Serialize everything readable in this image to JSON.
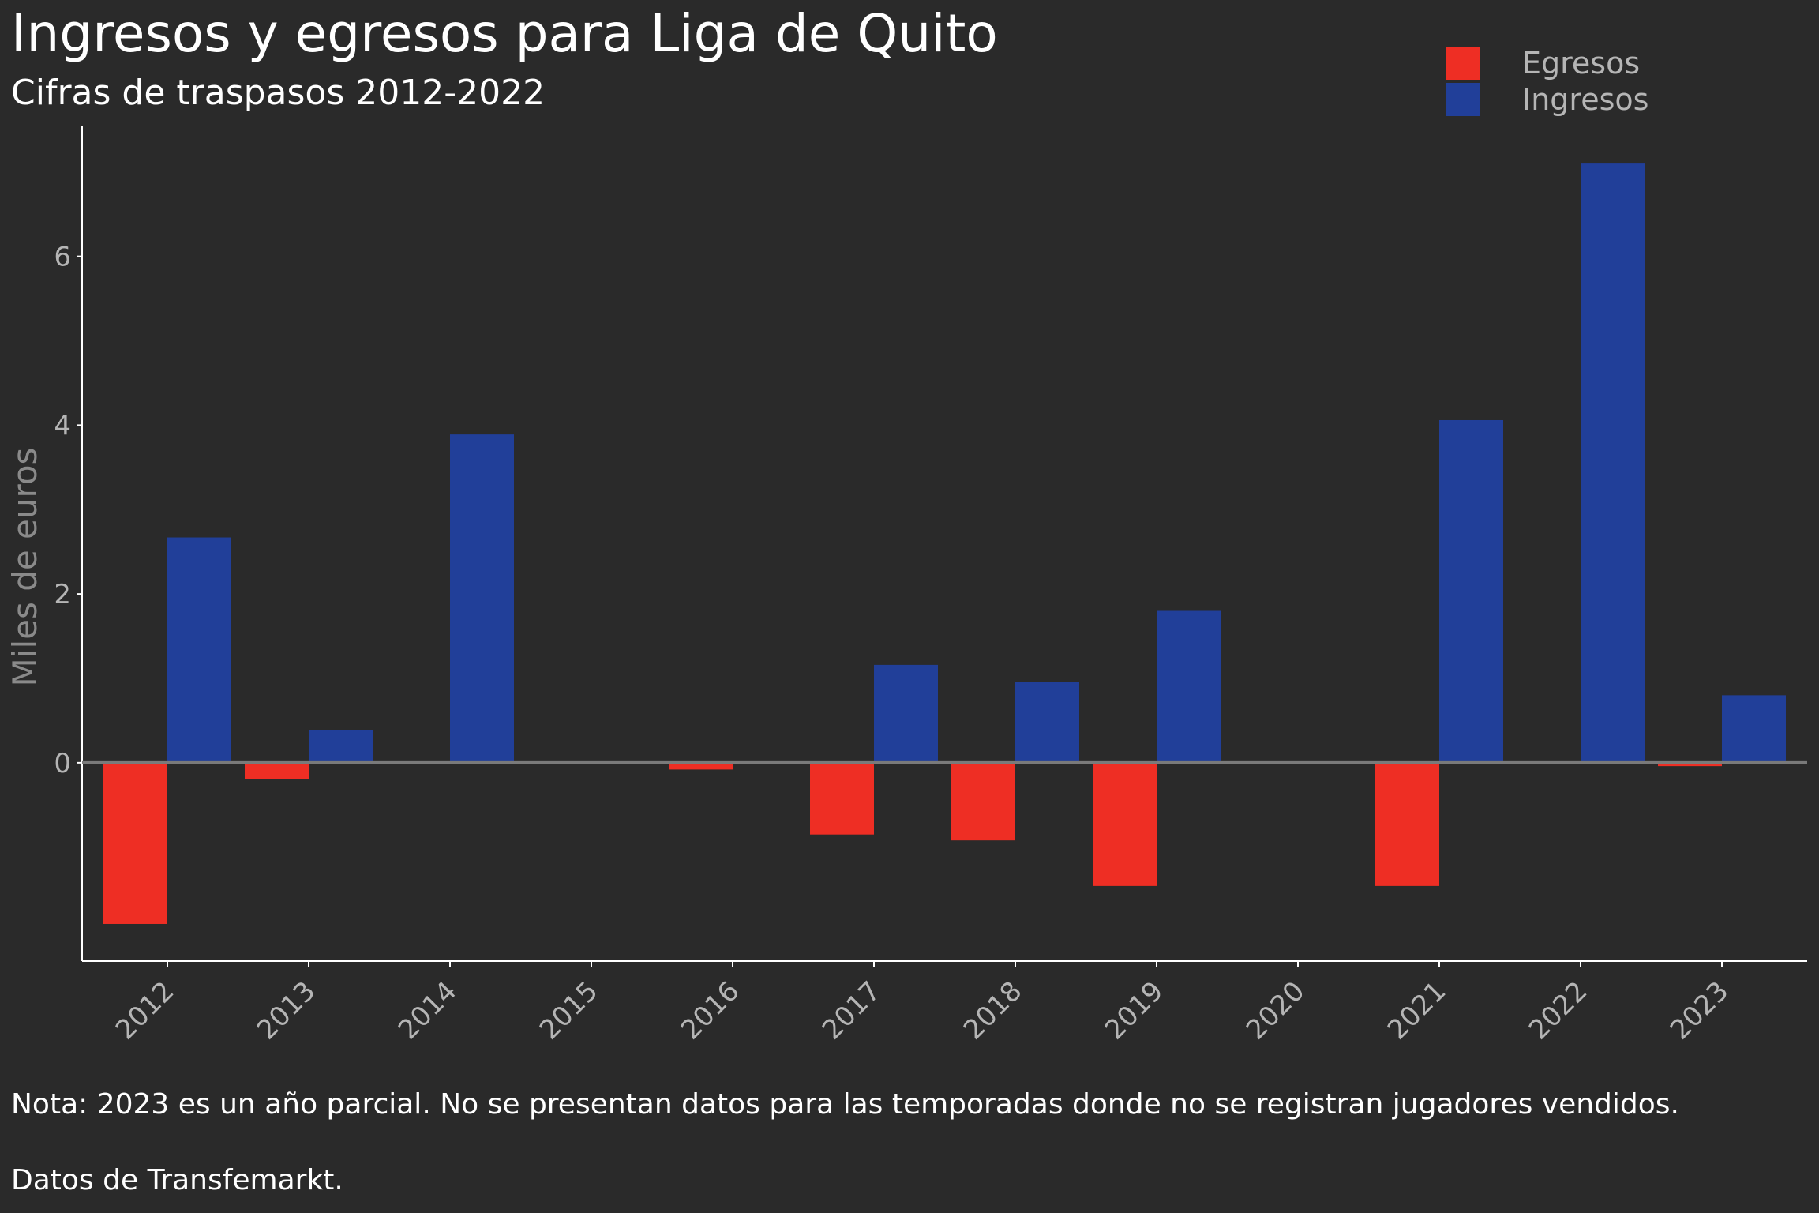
{
  "chart_data": {
    "type": "bar",
    "title": "Ingresos y egresos para Liga de Quito",
    "subtitle": "Cifras de traspasos 2012-2022",
    "xlabel": "",
    "ylabel": "Miles de euros",
    "categories": [
      "2012",
      "2013",
      "2014",
      "2015",
      "2016",
      "2017",
      "2018",
      "2019",
      "2020",
      "2021",
      "2022",
      "2023"
    ],
    "series": [
      {
        "name": "Egresos",
        "color": "#ee2e24",
        "values": [
          -1.91,
          -0.19,
          0,
          0,
          -0.08,
          -0.85,
          -0.92,
          -1.46,
          0,
          -1.46,
          0,
          -0.04
        ]
      },
      {
        "name": "Ingresos",
        "color": "#213f99",
        "values": [
          2.67,
          0.39,
          3.89,
          0,
          0,
          1.16,
          0.96,
          1.8,
          0,
          4.06,
          7.1,
          0.8
        ]
      }
    ],
    "yticks": [
      0,
      2,
      4,
      6
    ],
    "ylim": [
      -2.35,
      7.55
    ],
    "legend_position": "top-right",
    "grid": false,
    "note": "Nota: 2023 es un año parcial. No se presentan datos para las temporadas donde no se registran jugadores vendidos.",
    "source": "Datos de Transfemarkt."
  }
}
